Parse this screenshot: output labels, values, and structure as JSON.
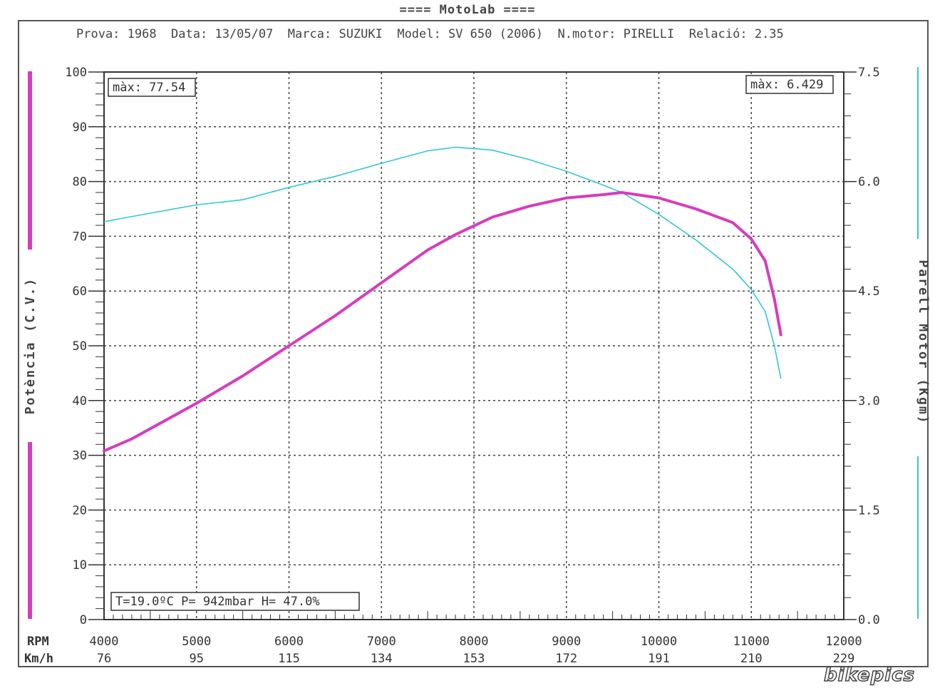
{
  "header": {
    "brand": "==== MotoLab ====",
    "info": "Prova: 1968  Data: 13/05/07  Marca: SUZUKI  Model: SV 650 (2006)  N.motor: PIRELLI  Relació: 2.35"
  },
  "watermark": "bikepics",
  "colors": {
    "power": "#d63cbf",
    "torque": "#33c6d9",
    "grid": "#444444"
  },
  "chart_data": {
    "type": "line",
    "title": "",
    "x": [
      4000,
      4300,
      5000,
      5500,
      6000,
      6500,
      7000,
      7500,
      7800,
      8200,
      8600,
      9000,
      9400,
      9600,
      10000,
      10400,
      10800,
      11000,
      11150,
      11250,
      11320
    ],
    "xlim": [
      4000,
      12000
    ],
    "x_ticks": [
      4000,
      5000,
      6000,
      7000,
      8000,
      9000,
      10000,
      11000,
      12000
    ],
    "x_label": "RPM",
    "speed_ticks": [
      "76",
      "95",
      "115",
      "134",
      "153",
      "172",
      "191",
      "210",
      "229"
    ],
    "speed_label": "Km/h",
    "y_left": {
      "label": "Potència (C.V.)",
      "lim": [
        0,
        100
      ],
      "ticks": [
        "0",
        "10",
        "20",
        "30",
        "40",
        "50",
        "60",
        "70",
        "80",
        "90",
        "100"
      ]
    },
    "y_right": {
      "label": "Parell Motor (Kgm)",
      "lim": [
        0,
        7.5
      ],
      "ticks": [
        "0.0",
        "1.5",
        "3.0",
        "4.5",
        "6.0",
        "7.5"
      ]
    },
    "series": [
      {
        "name": "",
        "axis": "left",
        "values": [
          30.8,
          33.0,
          39.5,
          44.5,
          50.0,
          55.5,
          61.5,
          67.5,
          70.3,
          73.5,
          75.5,
          77.0,
          77.6,
          78.0,
          77.0,
          75.0,
          72.5,
          69.5,
          65.5,
          58.5,
          52.0
        ]
      },
      {
        "name": "",
        "axis": "right",
        "values": [
          5.45,
          5.52,
          5.68,
          5.75,
          5.92,
          6.07,
          6.25,
          6.42,
          6.47,
          6.43,
          6.3,
          6.14,
          5.95,
          5.85,
          5.55,
          5.2,
          4.8,
          4.52,
          4.22,
          3.75,
          3.3
        ]
      }
    ],
    "annotations": {
      "power_max": "màx: 77.54",
      "torque_max": "màx: 6.429",
      "conditions": "T=19.0ºC P=  942mbar H= 47.0%"
    },
    "grid": true
  }
}
